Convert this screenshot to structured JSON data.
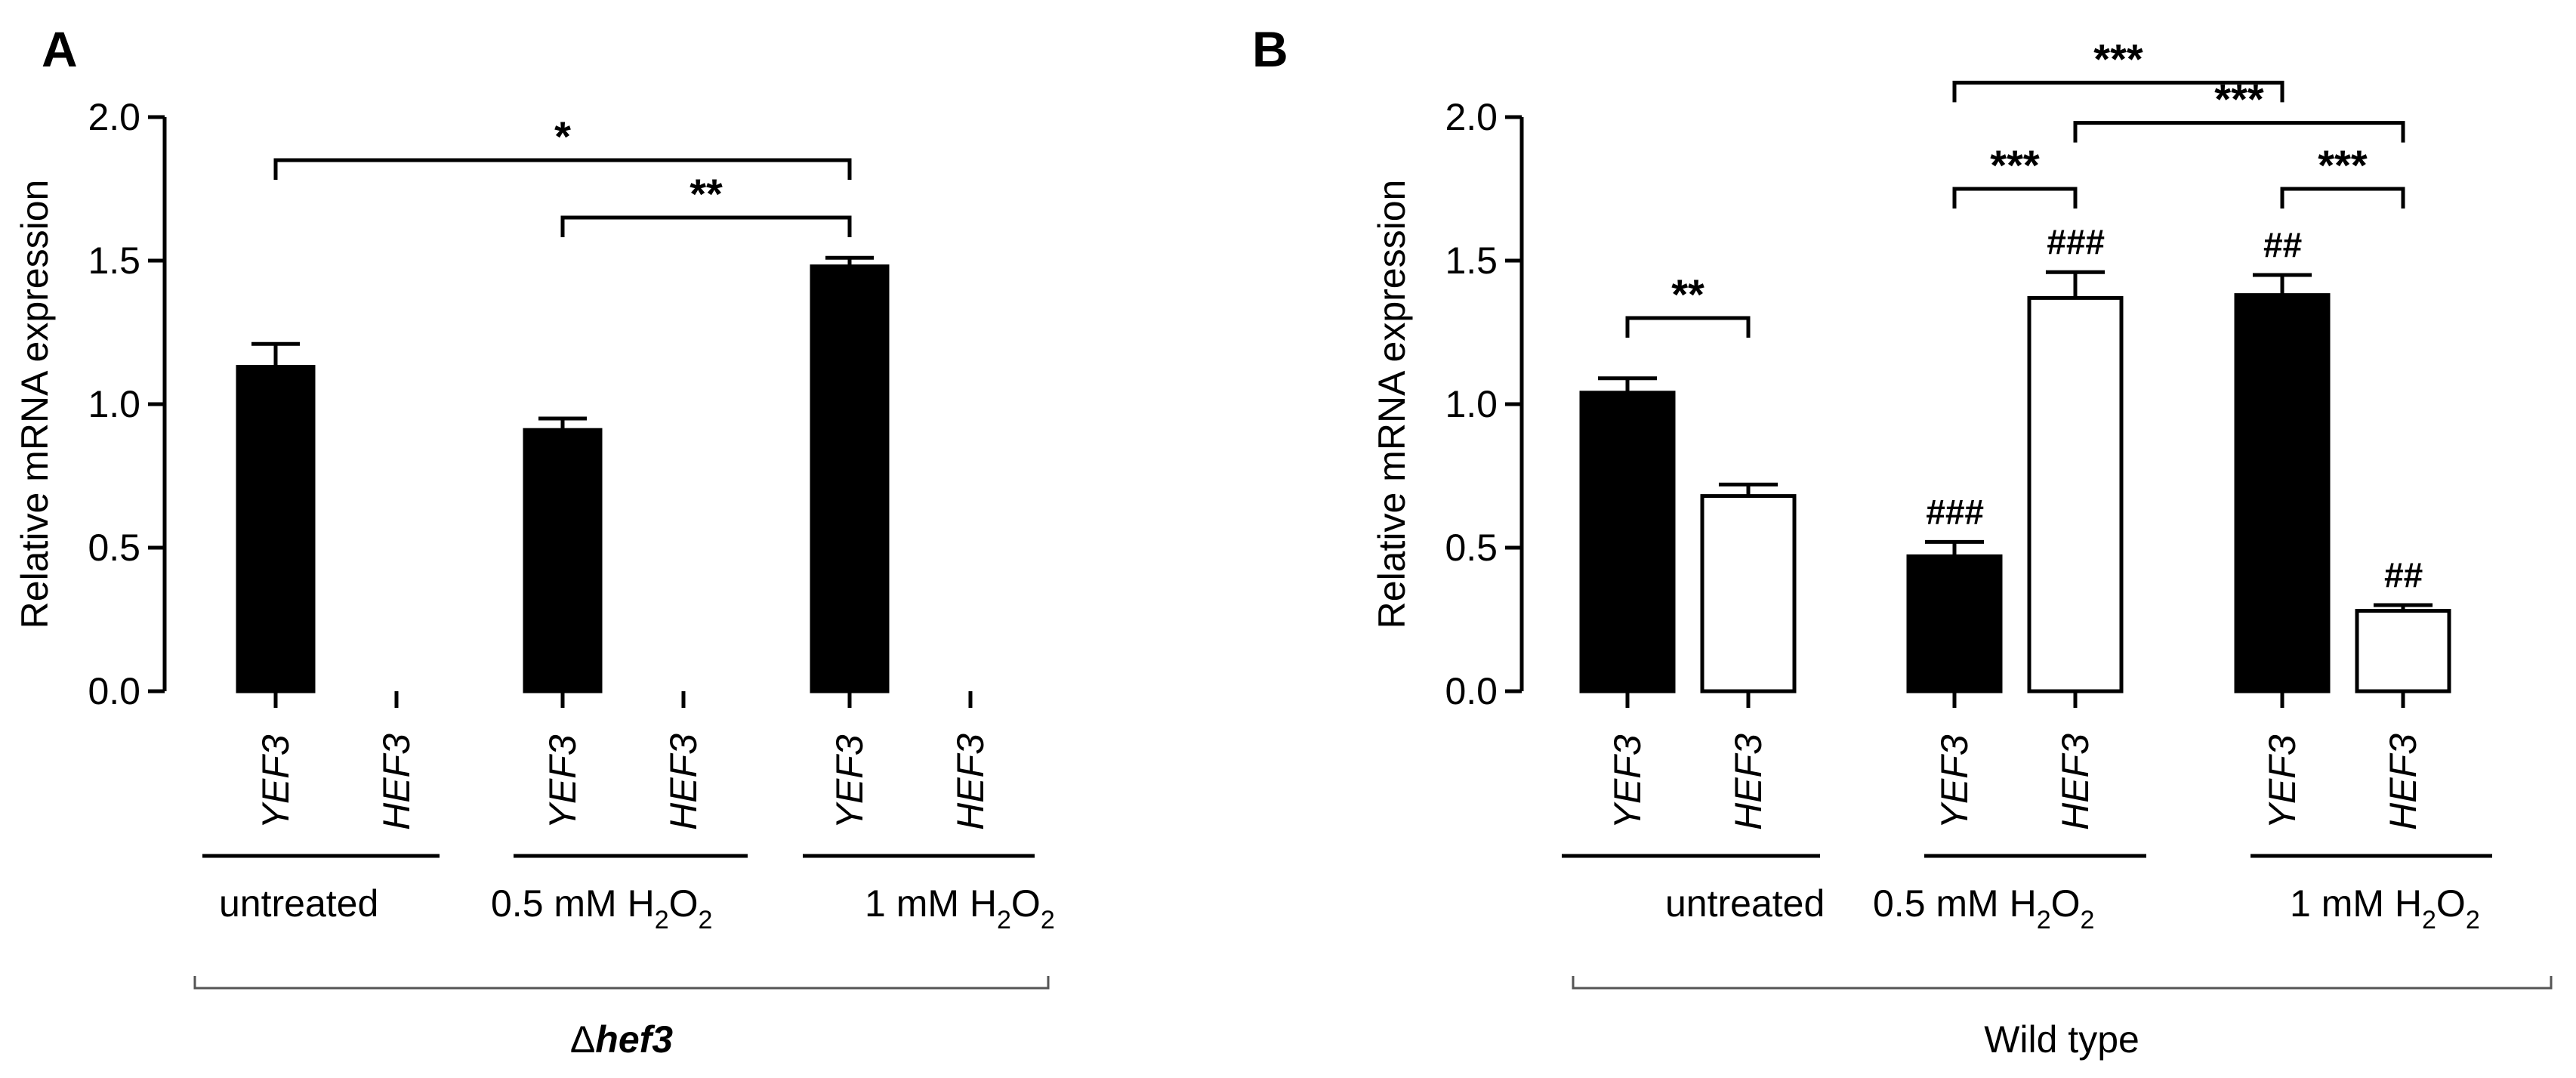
{
  "chart_data": [
    {
      "panel": "A",
      "type": "bar",
      "ylabel": "Relative mRNA expression",
      "ylim": [
        0,
        2.0
      ],
      "yticks": [
        "0.0",
        "0.5",
        "1.0",
        "1.5",
        "2.0"
      ],
      "strain_label": {
        "prefix": "Δ",
        "italic": "hef3"
      },
      "groups": [
        {
          "label": "untreated",
          "sub": ""
        },
        {
          "label": "0.5 mM H",
          "sub": "2",
          "label2": "O",
          "sub2": "2"
        },
        {
          "label": "1 mM H",
          "sub": "2",
          "label2": "O",
          "sub2": "2"
        }
      ],
      "bars": [
        {
          "category": "YEF3",
          "group": 0,
          "value": 1.13,
          "error": 0.08,
          "fill": "#000000",
          "annotation": ""
        },
        {
          "category": "HEF3",
          "group": 0,
          "value": 0,
          "error": 0,
          "fill": "#ffffff",
          "annotation": ""
        },
        {
          "category": "YEF3",
          "group": 1,
          "value": 0.91,
          "error": 0.04,
          "fill": "#000000",
          "annotation": ""
        },
        {
          "category": "HEF3",
          "group": 1,
          "value": 0,
          "error": 0,
          "fill": "#ffffff",
          "annotation": ""
        },
        {
          "category": "YEF3",
          "group": 2,
          "value": 1.48,
          "error": 0.03,
          "fill": "#000000",
          "annotation": ""
        },
        {
          "category": "HEF3",
          "group": 2,
          "value": 0,
          "error": 0,
          "fill": "#ffffff",
          "annotation": ""
        }
      ],
      "significance": [
        {
          "from_bar": 0,
          "to_bar": 4,
          "y": 1.85,
          "label": "*"
        },
        {
          "from_bar": 2,
          "to_bar": 4,
          "y": 1.65,
          "label": "**"
        }
      ]
    },
    {
      "panel": "B",
      "type": "bar",
      "ylabel": "Relative mRNA expression",
      "ylim": [
        0,
        2.0
      ],
      "yticks": [
        "0.0",
        "0.5",
        "1.0",
        "1.5",
        "2.0"
      ],
      "strain_label": {
        "prefix": "",
        "italic": "",
        "text": "Wild type"
      },
      "groups": [
        {
          "label": "untreated",
          "sub": ""
        },
        {
          "label": "0.5 mM H",
          "sub": "2",
          "label2": "O",
          "sub2": "2"
        },
        {
          "label": "1 mM H",
          "sub": "2",
          "label2": "O",
          "sub2": "2"
        }
      ],
      "bars": [
        {
          "category": "YEF3",
          "group": 0,
          "value": 1.04,
          "error": 0.05,
          "fill": "#000000",
          "annotation": ""
        },
        {
          "category": "HEF3",
          "group": 0,
          "value": 0.68,
          "error": 0.04,
          "fill": "#ffffff",
          "annotation": ""
        },
        {
          "category": "YEF3",
          "group": 1,
          "value": 0.47,
          "error": 0.05,
          "fill": "#000000",
          "annotation": "###"
        },
        {
          "category": "HEF3",
          "group": 1,
          "value": 1.37,
          "error": 0.09,
          "fill": "#ffffff",
          "annotation": "###"
        },
        {
          "category": "YEF3",
          "group": 2,
          "value": 1.38,
          "error": 0.07,
          "fill": "#000000",
          "annotation": "##"
        },
        {
          "category": "HEF3",
          "group": 2,
          "value": 0.28,
          "error": 0.02,
          "fill": "#ffffff",
          "annotation": "##"
        }
      ],
      "significance": [
        {
          "from_bar": 0,
          "to_bar": 1,
          "y": 1.3,
          "label": "**"
        },
        {
          "from_bar": 2,
          "to_bar": 3,
          "y": 1.75,
          "label": "***"
        },
        {
          "from_bar": 4,
          "to_bar": 5,
          "y": 1.75,
          "label": "***"
        },
        {
          "from_bar": 2,
          "to_bar": 4,
          "y": 2.12,
          "label": "***"
        },
        {
          "from_bar": 3,
          "to_bar": 5,
          "y": 1.98,
          "label": "***"
        }
      ]
    }
  ]
}
